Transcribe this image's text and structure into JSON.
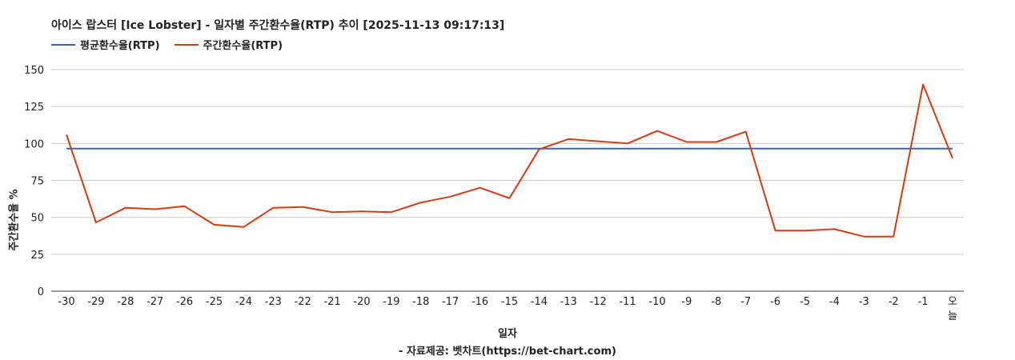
{
  "title": "아이스 랍스터 [Ice Lobster] - 일자별 주간환수율(RTP) 추이 [2025-11-13 09:17:13]",
  "source": "- 자료제공: 벳차트(https://bet-chart.com)",
  "colors": {
    "avg": "#3366cc",
    "weekly": "#dc3912",
    "grid": "#cccccc",
    "axis": "#333333"
  },
  "chart_data": {
    "type": "line",
    "xlabel": "일자",
    "ylabel": "주간환수율 %",
    "ylim": [
      0,
      150
    ],
    "yticks": [
      0,
      25,
      50,
      75,
      100,
      125,
      150
    ],
    "grid": true,
    "legend_position": "top-left",
    "categories": [
      "-30",
      "-29",
      "-28",
      "-27",
      "-26",
      "-25",
      "-24",
      "-23",
      "-22",
      "-21",
      "-20",
      "-19",
      "-18",
      "-17",
      "-16",
      "-15",
      "-14",
      "-13",
      "-12",
      "-11",
      "-10",
      "-9",
      "-8",
      "-7",
      "-6",
      "-5",
      "-4",
      "-3",
      "-2",
      "-1",
      "오늘"
    ],
    "series": [
      {
        "name": "평균환수율(RTP)",
        "color": "#3366cc",
        "values": [
          96.5,
          96.5,
          96.5,
          96.5,
          96.5,
          96.5,
          96.5,
          96.5,
          96.5,
          96.5,
          96.5,
          96.5,
          96.5,
          96.5,
          96.5,
          96.5,
          96.5,
          96.5,
          96.5,
          96.5,
          96.5,
          96.5,
          96.5,
          96.5,
          96.5,
          96.5,
          96.5,
          96.5,
          96.5,
          96.5,
          96.5
        ]
      },
      {
        "name": "주간환수율(RTP)",
        "color": "#dc3912",
        "values": [
          106,
          46.5,
          56.5,
          55.5,
          57.5,
          45,
          43.5,
          56.5,
          57,
          53.5,
          54,
          53.5,
          60,
          64,
          70,
          63,
          96,
          103,
          101.5,
          100,
          108.5,
          101,
          101,
          108,
          41,
          41,
          42,
          37,
          37,
          140,
          90
        ]
      }
    ]
  }
}
